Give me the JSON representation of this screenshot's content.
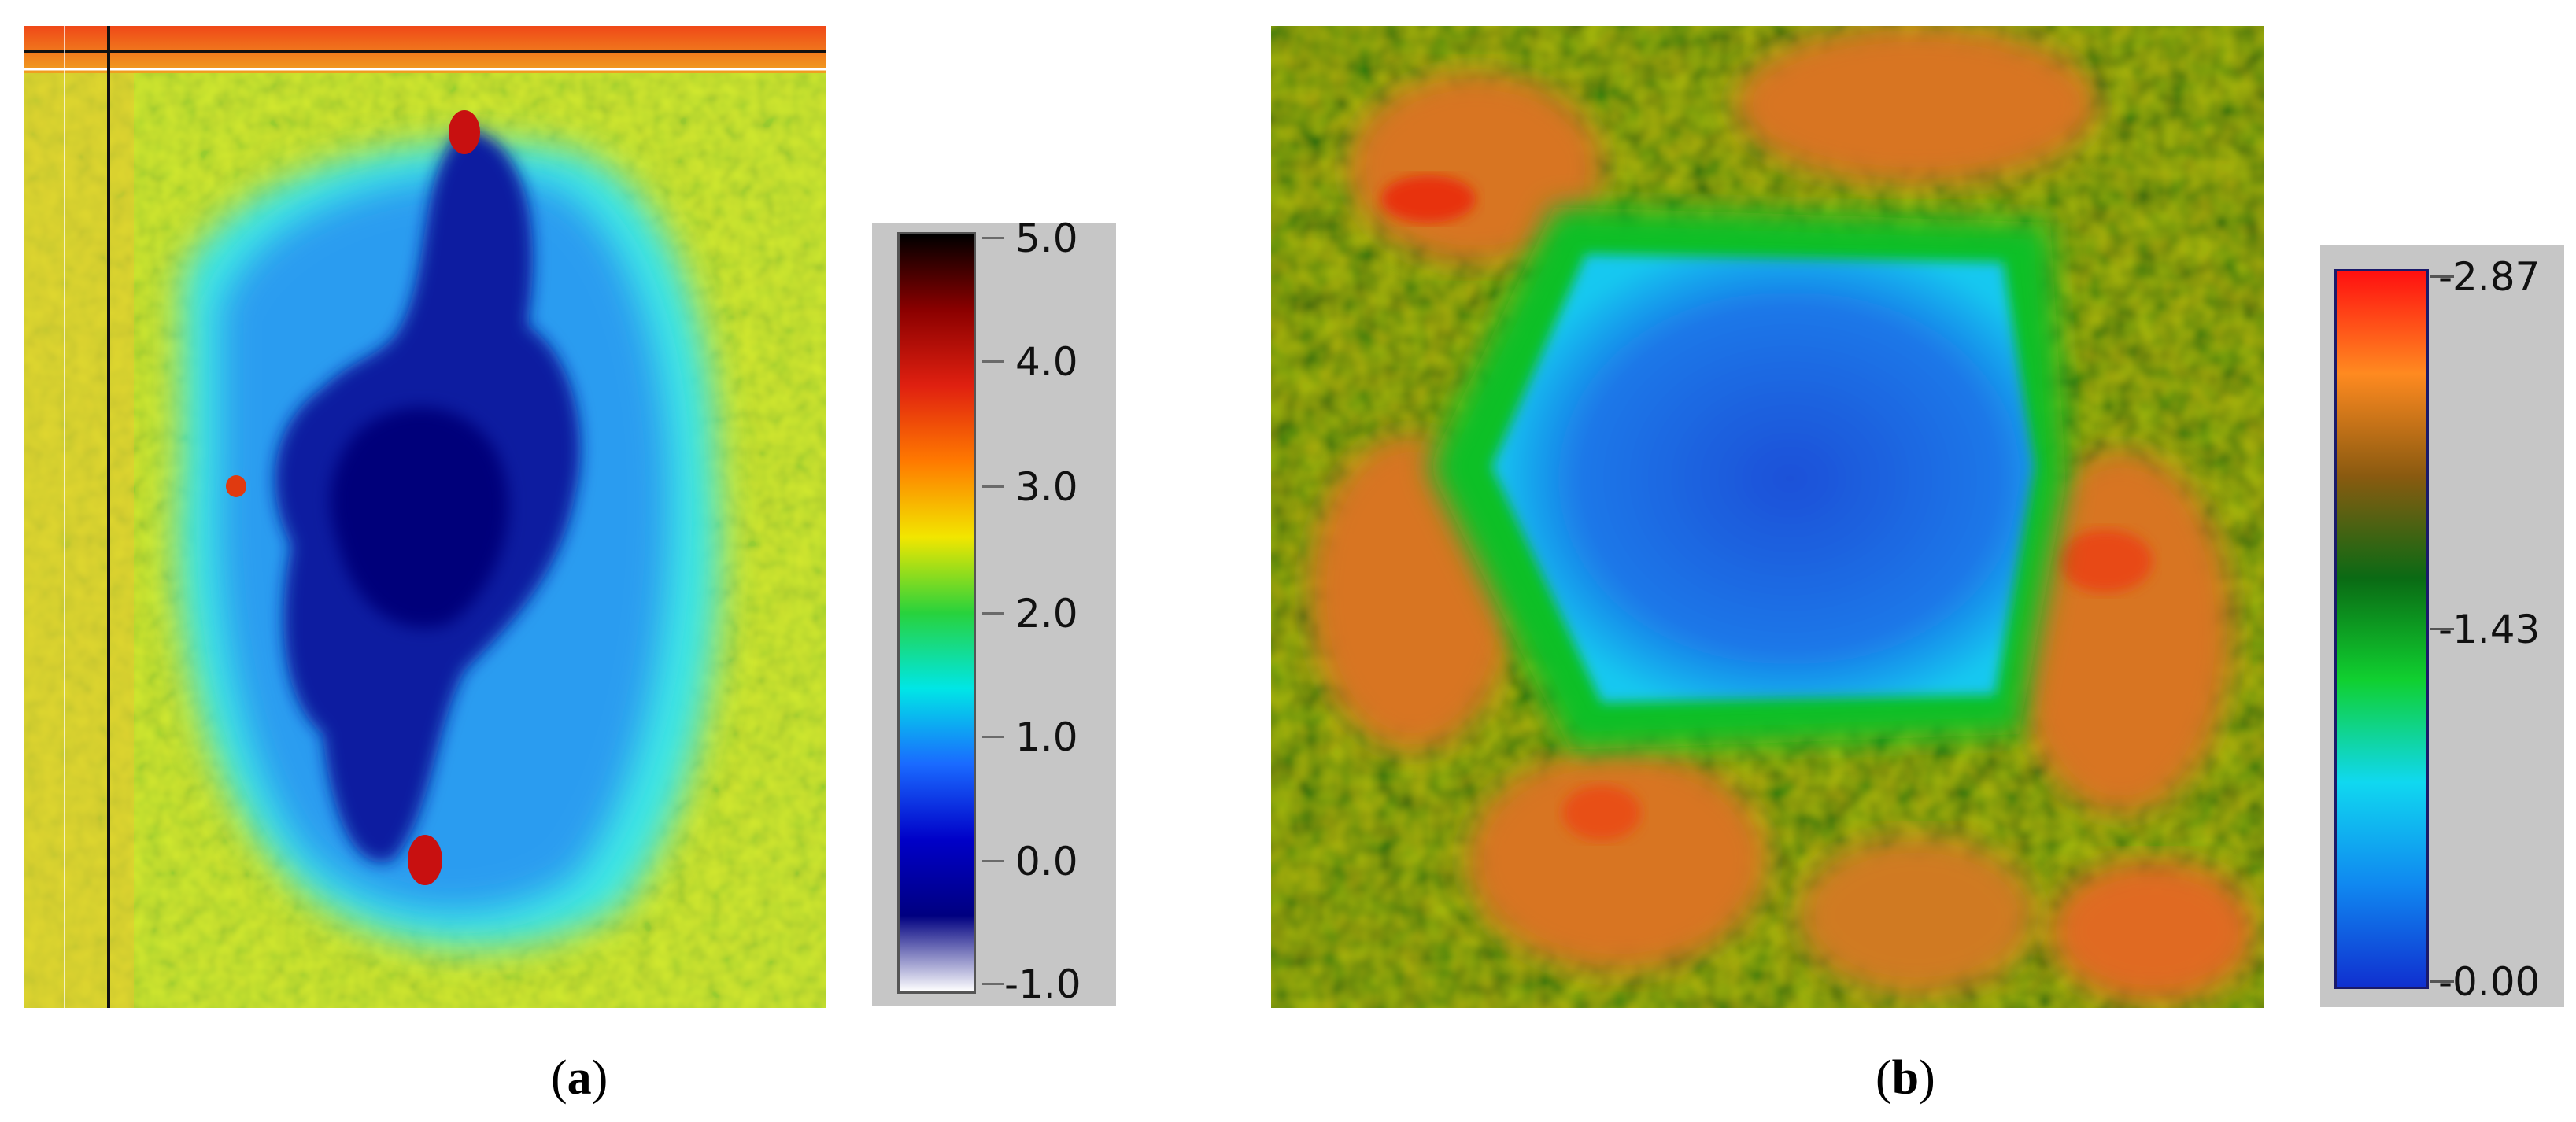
{
  "panel_a": {
    "caption_open": "(",
    "caption_letter": "a",
    "caption_close": ")",
    "colorbar": {
      "labels": [
        "5.0",
        "4.0",
        "3.0",
        "2.0",
        "1.0",
        "0.0",
        "-1.0"
      ],
      "colors": [
        "#000000",
        "#8b0000",
        "#e02010",
        "#ff7a00",
        "#f2e600",
        "#28d23c",
        "#00e6e6",
        "#1a6aff",
        "#0000c8",
        "#000080",
        "#ffffff"
      ]
    },
    "map_colors": {
      "background": "#c8e63c",
      "halo": "#3ee6e6",
      "core": "#0a1aa0",
      "hot": "#c81010"
    }
  },
  "panel_b": {
    "caption_open": "(",
    "caption_letter": "b",
    "caption_close": ")",
    "colorbar": {
      "labels": [
        "-2.87",
        "-1.43",
        "-0.00"
      ],
      "colors": [
        "#ff1010",
        "#ff8a20",
        "#8a5a10",
        "#0a6a14",
        "#10d030",
        "#10d8f0",
        "#1088f0",
        "#1030d0"
      ]
    },
    "map_colors": {
      "background": "#2a8a1a",
      "patch": "#e0801c",
      "pit": "#1a6ae6",
      "rim": "#1ad23c"
    }
  }
}
